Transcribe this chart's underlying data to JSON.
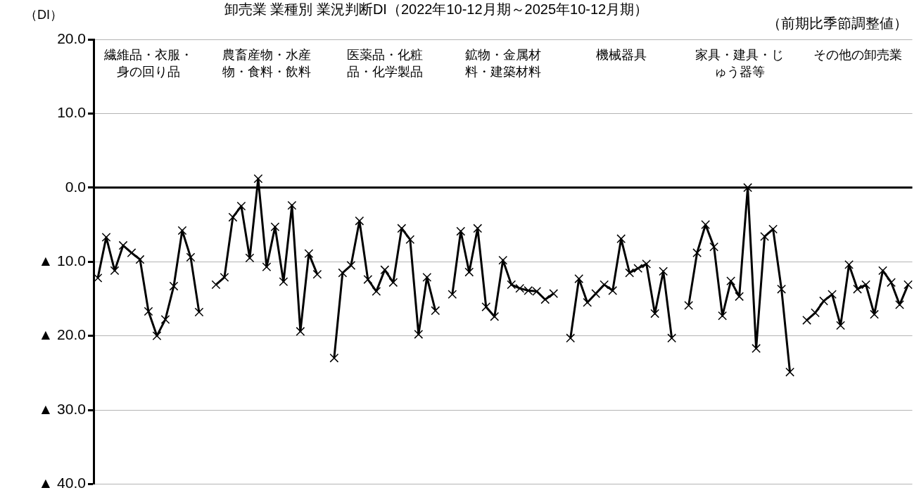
{
  "chart_data": {
    "type": "line",
    "title": "卸売業 業種別 業況判断DI（2022年10-12月期～2025年10-12月期）",
    "subtitle": "（前期比季節調整値）",
    "ylabel": "（DI）",
    "annotations": [
      "繊維品・衣服・身の回り品",
      "農畜産物・水産物・食料・飲料",
      "医薬品・化粧品・化学製品",
      "鉱物・金属材料・建築材料",
      "機械器具",
      "家具・建具・じゅう器等",
      "その他の卸売業"
    ],
    "categories": [
      null,
      null,
      null,
      null,
      null,
      null,
      null,
      null,
      null,
      null,
      null,
      null,
      null,
      null,
      null,
      null,
      null,
      null,
      null,
      null,
      null,
      null,
      null,
      null,
      null,
      null,
      null,
      null,
      null,
      null,
      null,
      null,
      null,
      null,
      null,
      null,
      null,
      null,
      null,
      null,
      null,
      null,
      null,
      null,
      null,
      null,
      null,
      null,
      null,
      null,
      null,
      null,
      null,
      null,
      null,
      null,
      null,
      null,
      null,
      null,
      null,
      null,
      null,
      null,
      null,
      null,
      null,
      null,
      null,
      null,
      null,
      null,
      null,
      null,
      null,
      null,
      null,
      null,
      null,
      null,
      null,
      null,
      null,
      null,
      null,
      null,
      null,
      null,
      null,
      null,
      null,
      null,
      null,
      null,
      null,
      null,
      null
    ],
    "series": [
      {
        "color": "#000000",
        "values": [
          -12.2,
          -6.7,
          -11.2,
          -7.8,
          -8.8,
          -9.7,
          -16.7,
          -20.0,
          -17.8,
          -13.3,
          -5.8,
          -9.4,
          -16.8,
          null,
          -13.1,
          -12.1,
          -4.0,
          -2.5,
          -9.5,
          1.2,
          -10.7,
          -5.3,
          -12.7,
          -2.4,
          -19.4,
          -8.9,
          -11.7,
          null,
          -23.0,
          -11.5,
          -10.5,
          -4.5,
          -12.4,
          -14.0,
          -11.1,
          -12.8,
          -5.5,
          -7.0,
          -19.8,
          -12.1,
          -16.6,
          null,
          -14.4,
          -5.9,
          -11.4,
          -5.5,
          -16.1,
          -17.4,
          -9.8,
          -13.1,
          -13.6,
          -13.9,
          -14.0,
          -15.1,
          -14.3,
          null,
          -20.3,
          -12.3,
          -15.5,
          -14.3,
          -13.1,
          -13.9,
          -6.9,
          -11.5,
          -10.9,
          -10.3,
          -17.0,
          -11.3,
          -20.3,
          null,
          -15.9,
          -8.8,
          -5.0,
          -8.0,
          -17.3,
          -12.6,
          -14.7,
          0.0,
          -21.7,
          -6.6,
          -5.6,
          -13.7,
          -24.9,
          null,
          -17.9,
          -16.9,
          -15.3,
          -14.4,
          -18.6,
          -10.4,
          -13.7,
          -13.1,
          -17.1,
          -11.2,
          -12.8,
          -15.8,
          -13.1
        ]
      }
    ],
    "ylim": [
      -40,
      20
    ],
    "yticks": [
      {
        "value": -40,
        "label": "▲ 40.0"
      },
      {
        "value": -30,
        "label": "▲ 30.0"
      },
      {
        "value": -20,
        "label": "▲ 20.0"
      },
      {
        "value": -10,
        "label": "▲ 10.0"
      },
      {
        "value": 0,
        "label": "0.0"
      },
      {
        "value": 10,
        "label": "10.0"
      },
      {
        "value": 20,
        "label": "20.0"
      }
    ],
    "ref_lines": [
      {
        "axis": "y",
        "value": 0,
        "color": "#000000"
      }
    ],
    "grid": "y",
    "legend": false,
    "marker": "cross",
    "line_style": "solid",
    "tick_labels": "y"
  }
}
